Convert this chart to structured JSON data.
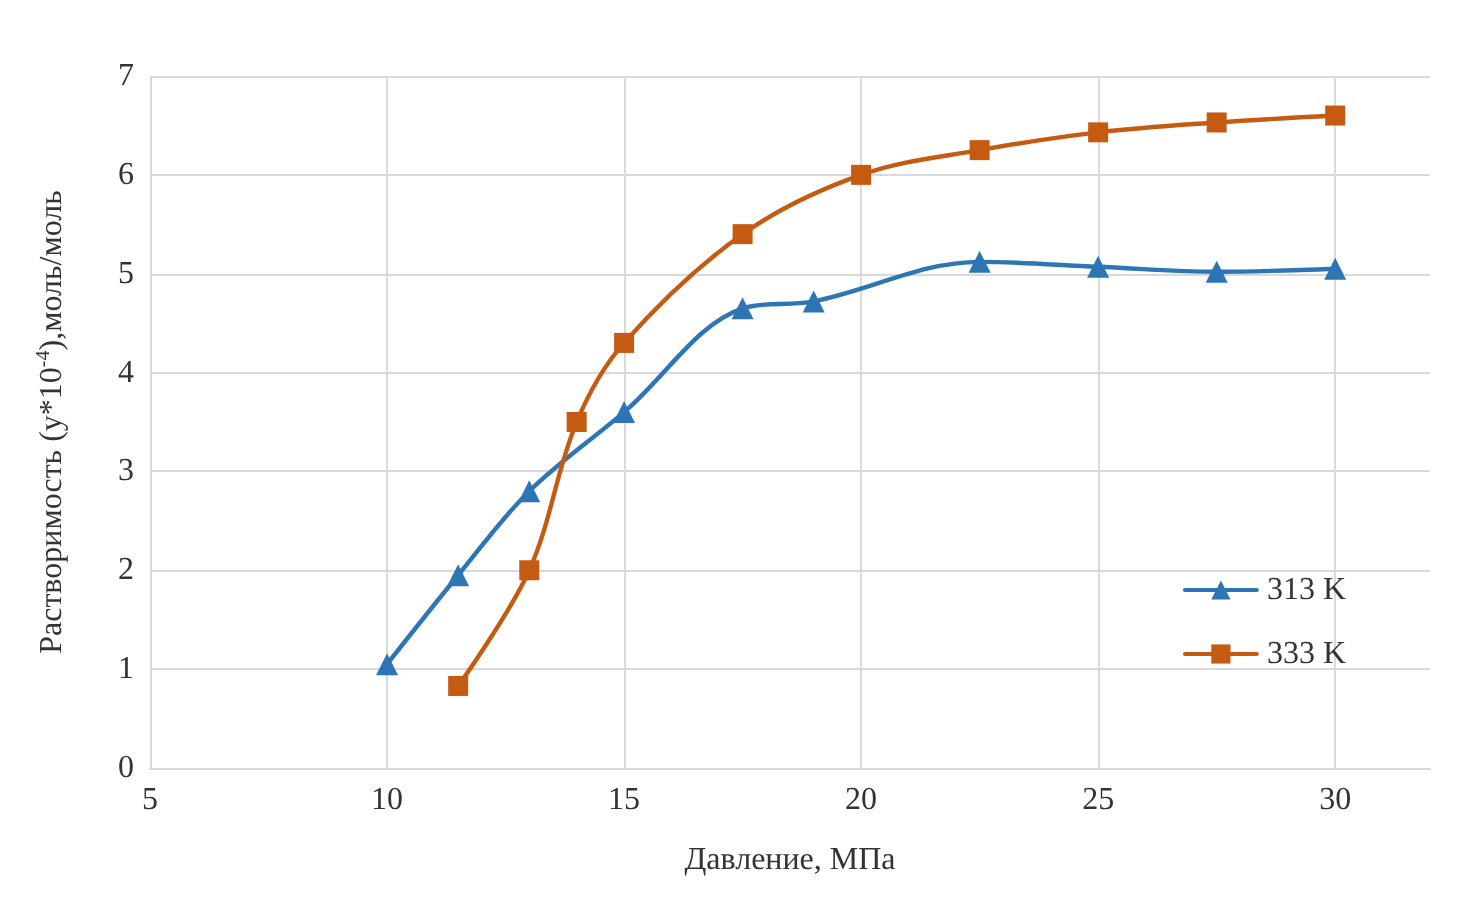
{
  "chart_data": {
    "type": "line",
    "xlabel": "Давление, МПа",
    "ylabel": "Растворимость (у*10$^{-4}$),моль/моль",
    "xlim": [
      5,
      32
    ],
    "xticks": [
      5,
      10,
      15,
      20,
      25,
      30
    ],
    "ylim": [
      0,
      7
    ],
    "yticks": [
      0,
      1,
      2,
      3,
      4,
      5,
      6,
      7
    ],
    "grid": true,
    "legend": "bottom right",
    "series": [
      {
        "name": "313 K",
        "color": "#2e75b6",
        "marker": "triangle",
        "x": [
          10,
          11.5,
          13,
          15,
          17.5,
          19,
          22.5,
          25,
          27.5,
          30
        ],
        "values": [
          1.05,
          1.95,
          2.8,
          3.6,
          4.65,
          4.72,
          5.12,
          5.07,
          5.02,
          5.05
        ]
      },
      {
        "name": "333 K",
        "color": "#c55a11",
        "marker": "square",
        "x": [
          11.5,
          13,
          14,
          15,
          17.5,
          20,
          22.5,
          25,
          27.5,
          30
        ],
        "values": [
          0.83,
          2.0,
          3.5,
          4.3,
          5.4,
          6.0,
          6.25,
          6.43,
          6.53,
          6.6
        ]
      }
    ]
  }
}
